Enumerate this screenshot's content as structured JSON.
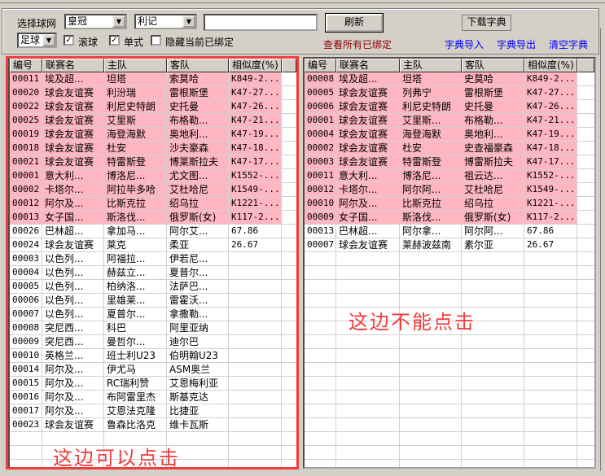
{
  "toolbar": {
    "site_label": "选择球网",
    "site_value": "皇冠",
    "company_value": "利记",
    "search_value": "",
    "refresh": "刷新",
    "download_dict": "下载字典",
    "sport_value": "足球",
    "rolling": {
      "label": "滚球",
      "checked": true
    },
    "single": {
      "label": "单式",
      "checked": true
    },
    "hide_bound": {
      "label": "隐藏当前已绑定",
      "checked": false
    },
    "view_all_bound": "查看所有已绑定",
    "dict_import": "字典导入",
    "dict_export": "字典导出",
    "dict_clear": "清空字典"
  },
  "columns": [
    "编号",
    "联赛名",
    "主队",
    "客队",
    "相似度(%)"
  ],
  "left_list": {
    "rows": [
      {
        "cells": [
          "00011",
          "埃及超...",
          "坦塔",
          "索莫哈",
          "K849-2..."
        ],
        "hl": true
      },
      {
        "cells": [
          "00020",
          "球会友谊赛",
          "利汾瑞",
          "雷根斯堡",
          "K47-27..."
        ],
        "hl": true
      },
      {
        "cells": [
          "00022",
          "球会友谊赛",
          "利尼史特朗",
          "史托曼",
          "K47-26..."
        ],
        "hl": true
      },
      {
        "cells": [
          "00025",
          "球会友谊赛",
          "艾里斯",
          "布格勒...",
          "K47-21..."
        ],
        "hl": true
      },
      {
        "cells": [
          "00019",
          "球会友谊赛",
          "海登海默",
          "奥地利...",
          "K47-19..."
        ],
        "hl": true
      },
      {
        "cells": [
          "00018",
          "球会友谊赛",
          "杜安",
          "沙夫豪森",
          "K47-18..."
        ],
        "hl": true
      },
      {
        "cells": [
          "00021",
          "球会友谊赛",
          "特雷斯登",
          "博莱斯拉夫",
          "K47-17..."
        ],
        "hl": true
      },
      {
        "cells": [
          "00001",
          "意大利...",
          "博洛尼...",
          "尤文图...",
          "K1552-..."
        ],
        "hl": true
      },
      {
        "cells": [
          "00002",
          "卡塔尔...",
          "阿拉毕多哈",
          "艾杜哈尼",
          "K1549-..."
        ],
        "hl": true
      },
      {
        "cells": [
          "00012",
          "阿尔及...",
          "比斯克拉",
          "绍乌拉",
          "K1221-..."
        ],
        "hl": true
      },
      {
        "cells": [
          "00013",
          "女子国...",
          "斯洛伐...",
          "俄罗斯(女)",
          "K117-2..."
        ],
        "hl": true
      },
      {
        "cells": [
          "00026",
          "巴林超...",
          "拿加马...",
          "阿尔艾...",
          "67.86"
        ],
        "hl": false
      },
      {
        "cells": [
          "00024",
          "球会友谊赛",
          "莱克",
          "柔亚",
          "26.67"
        ],
        "hl": false
      },
      {
        "cells": [
          "00003",
          "以色列...",
          "阿福拉...",
          "伊若尼...",
          ""
        ],
        "hl": false
      },
      {
        "cells": [
          "00004",
          "以色列...",
          "赫兹立...",
          "夏普尔...",
          ""
        ],
        "hl": false
      },
      {
        "cells": [
          "00005",
          "以色列...",
          "柏纳洛...",
          "法萨巴...",
          ""
        ],
        "hl": false
      },
      {
        "cells": [
          "00006",
          "以色列...",
          "里雄莱...",
          "雷霍沃...",
          ""
        ],
        "hl": false
      },
      {
        "cells": [
          "00007",
          "以色列...",
          "夏普尔...",
          "拿撒勒...",
          ""
        ],
        "hl": false
      },
      {
        "cells": [
          "00008",
          "突尼西...",
          "科巴",
          "阿里亚纳",
          ""
        ],
        "hl": false
      },
      {
        "cells": [
          "00009",
          "突尼西...",
          "曼哲尔...",
          "迪尔巴",
          ""
        ],
        "hl": false
      },
      {
        "cells": [
          "00010",
          "英格兰...",
          "班士利U23",
          "伯明翰U23",
          ""
        ],
        "hl": false
      },
      {
        "cells": [
          "00014",
          "阿尔及...",
          "伊尤马",
          "ASM奥兰",
          ""
        ],
        "hl": false
      },
      {
        "cells": [
          "00015",
          "阿尔及...",
          "RC瑞利赞",
          "艾恩梅利亚",
          ""
        ],
        "hl": false
      },
      {
        "cells": [
          "00016",
          "阿尔及...",
          "布阿雷里杰",
          "斯基克达",
          ""
        ],
        "hl": false
      },
      {
        "cells": [
          "00017",
          "阿尔及...",
          "艾恩法克隆",
          "比捷亚",
          ""
        ],
        "hl": false
      },
      {
        "cells": [
          "00023",
          "球会友谊赛",
          "鲁森比洛克",
          "维卡瓦斯",
          ""
        ],
        "hl": false
      }
    ],
    "note": "这边可以点击"
  },
  "right_list": {
    "rows": [
      {
        "cells": [
          "00008",
          "埃及超...",
          "坦塔",
          "史莫哈",
          "K849-2..."
        ],
        "hl": true
      },
      {
        "cells": [
          "00005",
          "球会友谊赛",
          "列弗宁",
          "雷根斯堡",
          "K47-27..."
        ],
        "hl": true
      },
      {
        "cells": [
          "00006",
          "球会友谊赛",
          "利尼史特朗",
          "史托曼",
          "K47-26..."
        ],
        "hl": true
      },
      {
        "cells": [
          "00001",
          "球会友谊赛",
          "艾里斯...",
          "布格勒...",
          "K47-21..."
        ],
        "hl": true
      },
      {
        "cells": [
          "00004",
          "球会友谊赛",
          "海登海默",
          "奥地利...",
          "K47-19..."
        ],
        "hl": true
      },
      {
        "cells": [
          "00002",
          "球会友谊赛",
          "杜安",
          "史查福豪森",
          "K47-18..."
        ],
        "hl": true
      },
      {
        "cells": [
          "00003",
          "球会友谊赛",
          "特雷斯登",
          "博雷斯拉夫",
          "K47-17..."
        ],
        "hl": true
      },
      {
        "cells": [
          "00011",
          "意大利...",
          "博洛尼...",
          "祖云达...",
          "K1552-..."
        ],
        "hl": true
      },
      {
        "cells": [
          "00012",
          "卡塔尔...",
          "阿尔阿...",
          "艾杜哈尼",
          "K1549-..."
        ],
        "hl": true
      },
      {
        "cells": [
          "00010",
          "阿尔及...",
          "比斯克拉",
          "绍乌拉",
          "K1221-..."
        ],
        "hl": true
      },
      {
        "cells": [
          "00009",
          "女子国...",
          "斯洛伐...",
          "俄罗斯(女)",
          "K117-2..."
        ],
        "hl": true
      },
      {
        "cells": [
          "00013",
          "巴林超...",
          "阿尔拿...",
          "阿尔阿...",
          "67.86"
        ],
        "hl": false
      },
      {
        "cells": [
          "00007",
          "球会友谊赛",
          "莱赫波兹南",
          "素尔亚",
          "26.67"
        ],
        "hl": false
      }
    ],
    "note": "这边不能点击"
  },
  "colors": {
    "highlight": "#ffb6c1",
    "annotation": "#f03c3c",
    "link": "#0000ff",
    "bound_link": "#8b0000"
  }
}
